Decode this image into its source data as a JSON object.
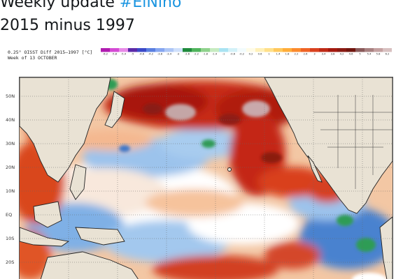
{
  "tweet": {
    "line1_text": "Weekly update ",
    "hashtag": "#ElNino",
    "line2": "2015 minus 1997"
  },
  "figure": {
    "header_line1": "0.25° OISST Diff 2015–1997 [°C]",
    "header_line2": "Week of 13 OCTOBER",
    "colorbar_labels": [
      "-6.2",
      "-5.8",
      "-5.4",
      "-5",
      "-4.6",
      "-4.2",
      "-3.8",
      "-3.4",
      "-3",
      "-2.6",
      "-2.2",
      "-1.8",
      "-1.4",
      "-1",
      "-0.6",
      "-0.2",
      "0.2",
      "0.6",
      "1",
      "1.4",
      "1.8",
      "2.2",
      "2.6",
      "3",
      "3.4",
      "3.8",
      "4.2",
      "4.6",
      "5",
      "5.4",
      "5.8",
      "6.2"
    ],
    "lat_labels": [
      "50N",
      "40N",
      "30N",
      "20N",
      "10N",
      "EQ",
      "10S",
      "20S"
    ],
    "colors": {
      "land": "#e9e2d4",
      "warm_strong": "#b51f12",
      "warm": "#e4582a",
      "mild": "#f7c89a",
      "neutral": "#ffffff",
      "cool": "#a8ccef",
      "cold": "#3f78c8",
      "green_anom": "#2e9c54",
      "extreme": "#c9a9ab"
    }
  }
}
